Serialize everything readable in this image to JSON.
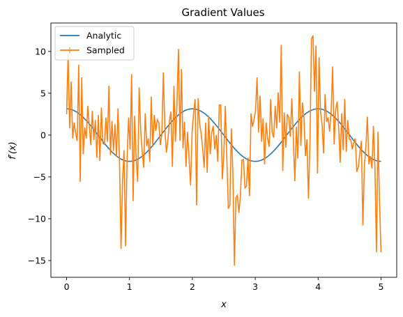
{
  "chart_data": {
    "type": "line",
    "title": "Gradient Values",
    "xlabel": "x",
    "ylabel": "f′(x)",
    "xlim": [
      -0.25,
      5.25
    ],
    "ylim": [
      -17,
      13.4
    ],
    "xticks": [
      0,
      1,
      2,
      3,
      4,
      5
    ],
    "yticks": [
      -15,
      -10,
      -5,
      0,
      5,
      10
    ],
    "legend": "top-left",
    "grid": false,
    "series": [
      {
        "name": "Analytic",
        "color": "#1f77b4",
        "formula": "pi*cos(pi*x)",
        "x_range": [
          0,
          5
        ]
      },
      {
        "name": "Sampled",
        "color": "#ff7f0e",
        "x_range": [
          0,
          5
        ],
        "values": [
          2.5,
          9.8,
          0.8,
          6.4,
          -0.4,
          1.5,
          0.2,
          -0.7,
          8.4,
          -5.6,
          6.9,
          -2.3,
          0.9,
          -0.4,
          3.5,
          1.1,
          -1.2,
          2.9,
          -0.6,
          1.8,
          -2.7,
          2.4,
          -3.1,
          3.3,
          -1.0,
          -1.1,
          2.1,
          -0.8,
          5.9,
          -2.4,
          1.7,
          -1.9,
          1.3,
          -2.6,
          3.2,
          -3.3,
          -13.6,
          -5.5,
          -1.8,
          -13.3,
          -2.8,
          2.1,
          -1.7,
          7.3,
          -7.9,
          2.3,
          -2.7,
          -5.6,
          5.7,
          0.6,
          -2.0,
          -3.9,
          2.6,
          -1.3,
          -0.4,
          -3.2,
          4.6,
          -1.4,
          2.4,
          0.5,
          1.8,
          1.5,
          -1.2,
          0.1,
          7.5,
          0.8,
          -2.1,
          -0.6,
          1.6,
          2.8,
          -3.8,
          5.9,
          -0.8,
          3.8,
          10.3,
          -0.7,
          7.9,
          -1.6,
          1.6,
          -3.8,
          0.4,
          -2.8,
          -6.0,
          0.3,
          2.6,
          4.3,
          -8.4,
          4.4,
          1.4,
          0.2,
          -1.6,
          -3.9,
          1.5,
          -4.5,
          2.3,
          -2.3,
          0.3,
          1.1,
          -1.7,
          0.0,
          -3.2,
          3.6,
          3.6,
          -5.3,
          -2.4,
          3.5,
          -2.8,
          -8.8,
          -8.4,
          0.8,
          -4.6,
          -15.6,
          -7.5,
          -7.2,
          -9.3,
          -7.2,
          -3.0,
          -2.9,
          -6.3,
          -6.1,
          -2.7,
          -7.3,
          2.6,
          1.0,
          1.9,
          2.9,
          6.9,
          0.3,
          4.7,
          -0.8,
          2.0,
          -3.5,
          1.5,
          -0.4,
          -1.4,
          4.3,
          0.3,
          -0.3,
          3.5,
          0.8,
          5.1,
          1.5,
          10.8,
          -4.3,
          2.7,
          -1.5,
          2.5,
          2.1,
          -0.2,
          4.4,
          -0.6,
          -5.5,
          1.0,
          -2.8,
          7.6,
          -1.3,
          3.9,
          2.1,
          -2.5,
          -0.5,
          -7.6,
          -1.0,
          11.5,
          11.9,
          5.2,
          10.7,
          -4.6,
          9.3,
          2.8,
          1.3,
          -2.2,
          4.9,
          1.6,
          2.1,
          0.4,
          2.8,
          8.2,
          -1.1,
          3.0,
          4.0,
          0.8,
          -3.3,
          2.6,
          -1.8,
          4.3,
          -2.0,
          1.8,
          -0.5,
          -0.5,
          -1.7,
          -0.9,
          -0.4,
          -4.4,
          -3.8,
          -2.1,
          -0.7,
          -10.8,
          -3.6,
          -1.3,
          2.2,
          -3.5,
          -2.5,
          -4.0,
          1.1,
          -4.0,
          -14.0,
          0.4,
          -7.9,
          -14.0
        ]
      }
    ]
  }
}
